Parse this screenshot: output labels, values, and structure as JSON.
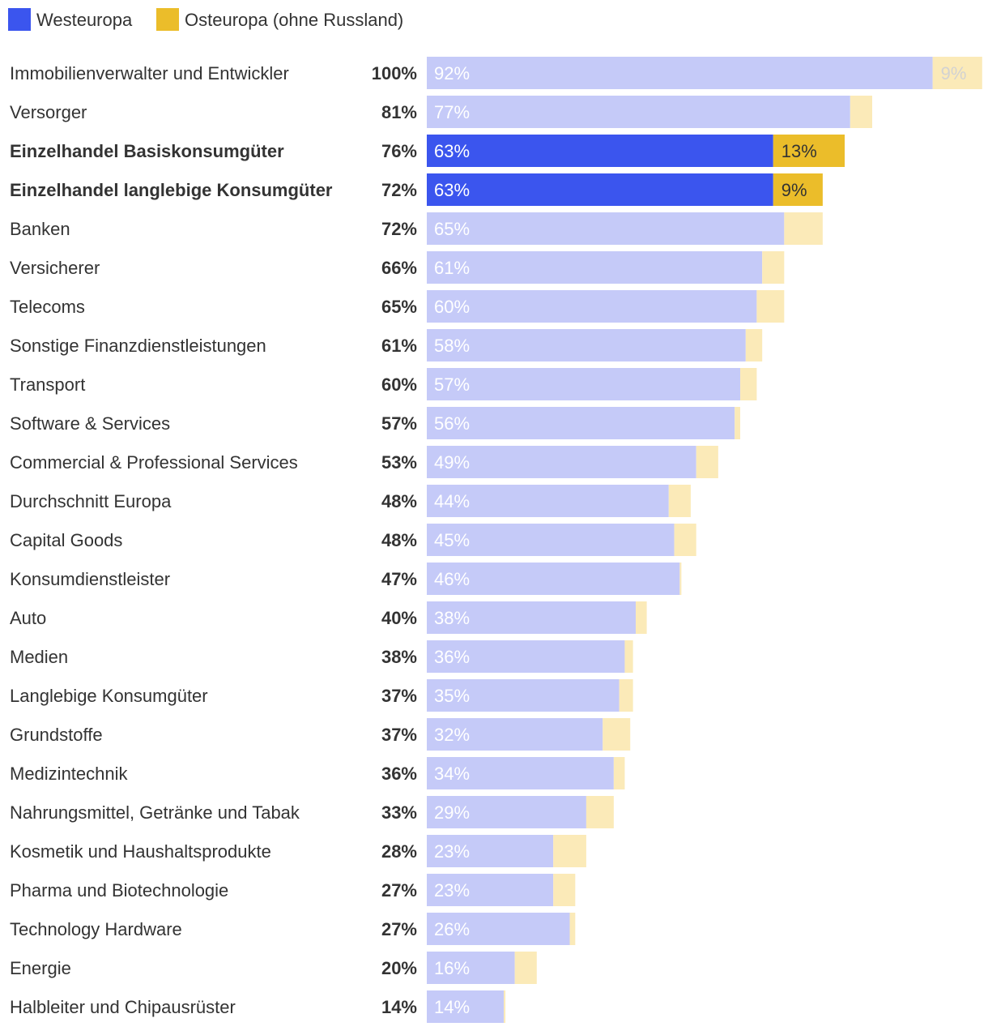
{
  "chart_data": {
    "type": "bar",
    "orientation": "horizontal",
    "stacked": true,
    "legend": {
      "position": "top-left",
      "entries": [
        {
          "name": "Westeuropa",
          "color": "#3b55ee"
        },
        {
          "name": "Osteuropa (ohne Russland)",
          "color": "#ebbd2a"
        }
      ]
    },
    "colors": {
      "west": "#3b55ee",
      "east": "#ebbd2a",
      "west_muted": "#c5caf8",
      "east_muted": "#fbeab8",
      "west_label_highlight": "#ffffff",
      "west_label_muted": "#ffffff",
      "east_label_highlight": "#333333",
      "east_label_muted": "#d2d2d2"
    },
    "xlim": [
      0,
      100
    ],
    "categories": [
      {
        "name": "Immobilienverwalter und Entwickler",
        "total": 100,
        "total_label": "100%",
        "west": 92,
        "east": 9,
        "west_label": "92%",
        "east_label": "9%",
        "highlight": false
      },
      {
        "name": "Versorger",
        "total": 81,
        "total_label": "81%",
        "west": 77,
        "east": 4,
        "west_label": "77%",
        "east_label": "",
        "highlight": false
      },
      {
        "name": "Einzelhandel Basiskonsumgüter",
        "total": 76,
        "total_label": "76%",
        "west": 63,
        "east": 13,
        "west_label": "63%",
        "east_label": "13%",
        "highlight": true
      },
      {
        "name": "Einzelhandel langlebige Konsumgüter",
        "total": 72,
        "total_label": "72%",
        "west": 63,
        "east": 9,
        "west_label": "63%",
        "east_label": "9%",
        "highlight": true
      },
      {
        "name": "Banken",
        "total": 72,
        "total_label": "72%",
        "west": 65,
        "east": 7,
        "west_label": "65%",
        "east_label": "",
        "highlight": false
      },
      {
        "name": "Versicherer",
        "total": 66,
        "total_label": "66%",
        "west": 61,
        "east": 4,
        "west_label": "61%",
        "east_label": "",
        "highlight": false
      },
      {
        "name": "Telecoms",
        "total": 65,
        "total_label": "65%",
        "west": 60,
        "east": 5,
        "west_label": "60%",
        "east_label": "",
        "highlight": false
      },
      {
        "name": "Sonstige Finanzdienstleistungen",
        "total": 61,
        "total_label": "61%",
        "west": 58,
        "east": 3,
        "west_label": "58%",
        "east_label": "",
        "highlight": false
      },
      {
        "name": "Transport",
        "total": 60,
        "total_label": "60%",
        "west": 57,
        "east": 3,
        "west_label": "57%",
        "east_label": "",
        "highlight": false
      },
      {
        "name": "Software & Services",
        "total": 57,
        "total_label": "57%",
        "west": 56,
        "east": 1,
        "west_label": "56%",
        "east_label": "",
        "highlight": false
      },
      {
        "name": "Commercial & Professional Services",
        "total": 53,
        "total_label": "53%",
        "west": 49,
        "east": 4,
        "west_label": "49%",
        "east_label": "",
        "highlight": false
      },
      {
        "name": "Durchschnitt Europa",
        "total": 48,
        "total_label": "48%",
        "west": 44,
        "east": 4,
        "west_label": "44%",
        "east_label": "",
        "highlight": false
      },
      {
        "name": "Capital Goods",
        "total": 48,
        "total_label": "48%",
        "west": 45,
        "east": 4,
        "west_label": "45%",
        "east_label": "",
        "highlight": false
      },
      {
        "name": "Konsumdienstleister",
        "total": 47,
        "total_label": "47%",
        "west": 46,
        "east": 0.3,
        "west_label": "46%",
        "east_label": "",
        "highlight": false
      },
      {
        "name": "Auto",
        "total": 40,
        "total_label": "40%",
        "west": 38,
        "east": 2,
        "west_label": "38%",
        "east_label": "",
        "highlight": false
      },
      {
        "name": "Medien",
        "total": 38,
        "total_label": "38%",
        "west": 36,
        "east": 1.5,
        "west_label": "36%",
        "east_label": "",
        "highlight": false
      },
      {
        "name": "Langlebige Konsumgüter",
        "total": 37,
        "total_label": "37%",
        "west": 35,
        "east": 2.5,
        "west_label": "35%",
        "east_label": "",
        "highlight": false
      },
      {
        "name": "Grundstoffe",
        "total": 37,
        "total_label": "37%",
        "west": 32,
        "east": 5,
        "west_label": "32%",
        "east_label": "",
        "highlight": false
      },
      {
        "name": "Medizintechnik",
        "total": 36,
        "total_label": "36%",
        "west": 34,
        "east": 2,
        "west_label": "34%",
        "east_label": "",
        "highlight": false
      },
      {
        "name": "Nahrungsmittel, Getränke und Tabak",
        "total": 33,
        "total_label": "33%",
        "west": 29,
        "east": 5,
        "west_label": "29%",
        "east_label": "",
        "highlight": false
      },
      {
        "name": "Kosmetik und Haushaltsprodukte",
        "total": 28,
        "total_label": "28%",
        "west": 23,
        "east": 6,
        "west_label": "23%",
        "east_label": "",
        "highlight": false
      },
      {
        "name": "Pharma und Biotechnologie",
        "total": 27,
        "total_label": "27%",
        "west": 23,
        "east": 4,
        "west_label": "23%",
        "east_label": "",
        "highlight": false
      },
      {
        "name": "Technology Hardware",
        "total": 27,
        "total_label": "27%",
        "west": 26,
        "east": 1,
        "west_label": "26%",
        "east_label": "",
        "highlight": false
      },
      {
        "name": "Energie",
        "total": 20,
        "total_label": "20%",
        "west": 16,
        "east": 4,
        "west_label": "16%",
        "east_label": "",
        "highlight": false
      },
      {
        "name": "Halbleiter und Chipausrüster",
        "total": 14,
        "total_label": "14%",
        "west": 14,
        "east": 0.3,
        "west_label": "14%",
        "east_label": "",
        "highlight": false
      }
    ]
  }
}
